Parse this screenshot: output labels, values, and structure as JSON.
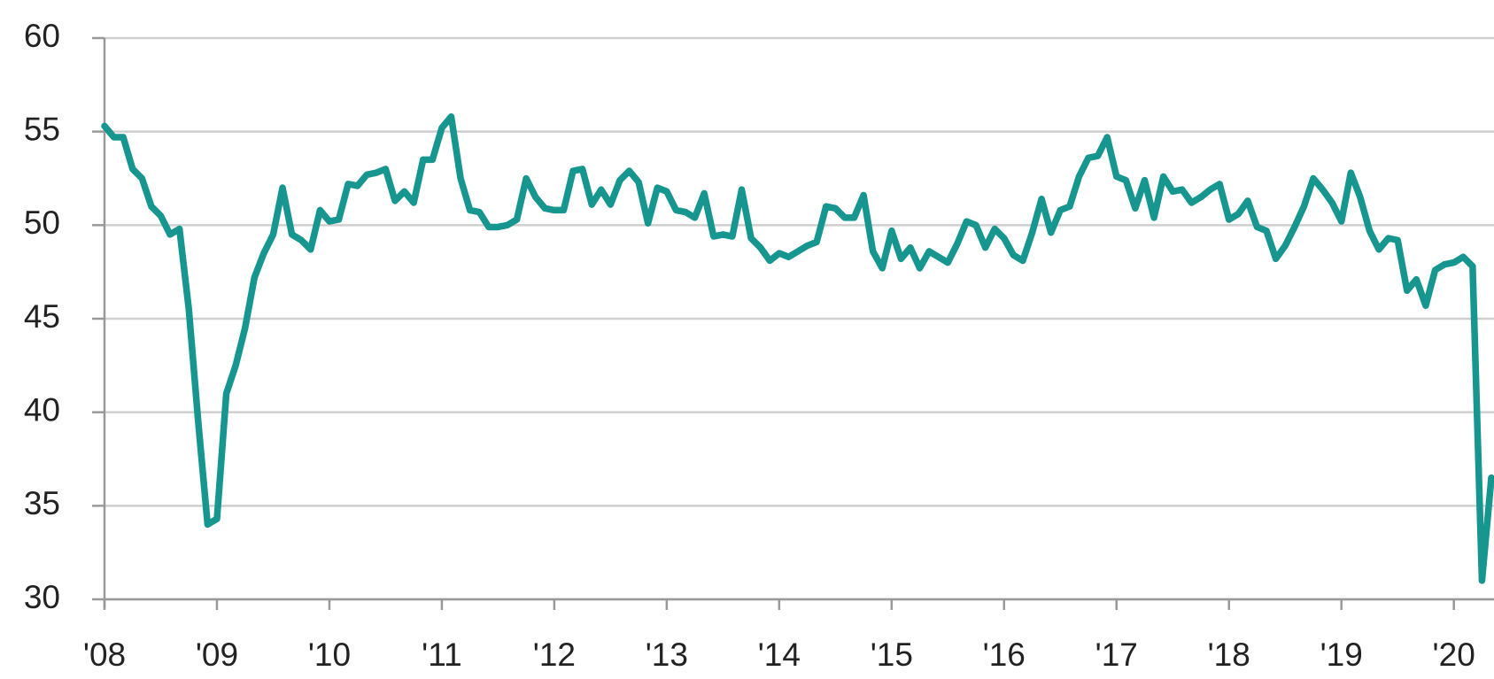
{
  "chart_data": {
    "type": "line",
    "categories": [
      "'08",
      null,
      null,
      null,
      null,
      null,
      null,
      null,
      null,
      null,
      null,
      null,
      "'09",
      null,
      null,
      null,
      null,
      null,
      null,
      null,
      null,
      null,
      null,
      null,
      "'10",
      null,
      null,
      null,
      null,
      null,
      null,
      null,
      null,
      null,
      null,
      null,
      "'11",
      null,
      null,
      null,
      null,
      null,
      null,
      null,
      null,
      null,
      null,
      null,
      "'12",
      null,
      null,
      null,
      null,
      null,
      null,
      null,
      null,
      null,
      null,
      null,
      "'13",
      null,
      null,
      null,
      null,
      null,
      null,
      null,
      null,
      null,
      null,
      null,
      "'14",
      null,
      null,
      null,
      null,
      null,
      null,
      null,
      null,
      null,
      null,
      null,
      "'15",
      null,
      null,
      null,
      null,
      null,
      null,
      null,
      null,
      null,
      null,
      null,
      "'16",
      null,
      null,
      null,
      null,
      null,
      null,
      null,
      null,
      null,
      null,
      null,
      "'17",
      null,
      null,
      null,
      null,
      null,
      null,
      null,
      null,
      null,
      null,
      null,
      "'18",
      null,
      null,
      null,
      null,
      null,
      null,
      null,
      null,
      null,
      null,
      null,
      "'19",
      null,
      null,
      null,
      null,
      null,
      null,
      null,
      null,
      null,
      null,
      null,
      "'20",
      null,
      null,
      null,
      null
    ],
    "series": [
      {
        "color": "#16968f",
        "values": [
          55.3,
          54.7,
          54.7,
          53.0,
          52.5,
          51.0,
          50.5,
          49.5,
          49.8,
          45.5,
          39.5,
          34.0,
          34.3,
          41.0,
          42.5,
          44.5,
          47.2,
          48.5,
          49.5,
          52.0,
          49.5,
          49.2,
          48.7,
          50.8,
          50.2,
          50.3,
          52.2,
          52.1,
          52.7,
          52.8,
          53.0,
          51.3,
          51.8,
          51.2,
          53.5,
          53.5,
          55.2,
          55.8,
          52.5,
          50.8,
          50.7,
          49.9,
          49.9,
          50.0,
          50.3,
          52.5,
          51.5,
          50.9,
          50.8,
          50.8,
          52.9,
          53.0,
          51.1,
          51.9,
          51.1,
          52.4,
          52.9,
          52.3,
          50.1,
          52.0,
          51.8,
          50.8,
          50.7,
          50.4,
          51.7,
          49.4,
          49.5,
          49.4,
          51.9,
          49.3,
          48.8,
          48.1,
          48.5,
          48.3,
          48.6,
          48.9,
          49.1,
          51.0,
          50.9,
          50.4,
          50.4,
          51.6,
          48.6,
          47.7,
          49.7,
          48.2,
          48.8,
          47.7,
          48.6,
          48.3,
          48.0,
          49.0,
          50.2,
          50.0,
          48.8,
          49.8,
          49.3,
          48.4,
          48.1,
          49.6,
          51.4,
          49.6,
          50.8,
          51.0,
          52.6,
          53.6,
          53.7,
          54.7,
          52.6,
          52.4,
          50.9,
          52.4,
          50.4,
          52.6,
          51.8,
          51.9,
          51.2,
          51.5,
          51.9,
          52.2,
          50.3,
          50.6,
          51.3,
          49.9,
          49.7,
          48.2,
          48.9,
          49.9,
          51.0,
          52.5,
          51.9,
          51.2,
          50.2,
          52.8,
          51.5,
          49.7,
          48.7,
          49.3,
          49.2,
          46.5,
          47.1,
          45.7,
          47.6,
          47.9,
          48.0,
          48.3,
          47.8,
          31.0,
          36.5
        ]
      }
    ],
    "ylim": [
      30,
      60
    ],
    "yticks": [
      30,
      35,
      40,
      45,
      50,
      55,
      60
    ],
    "grid": true
  }
}
